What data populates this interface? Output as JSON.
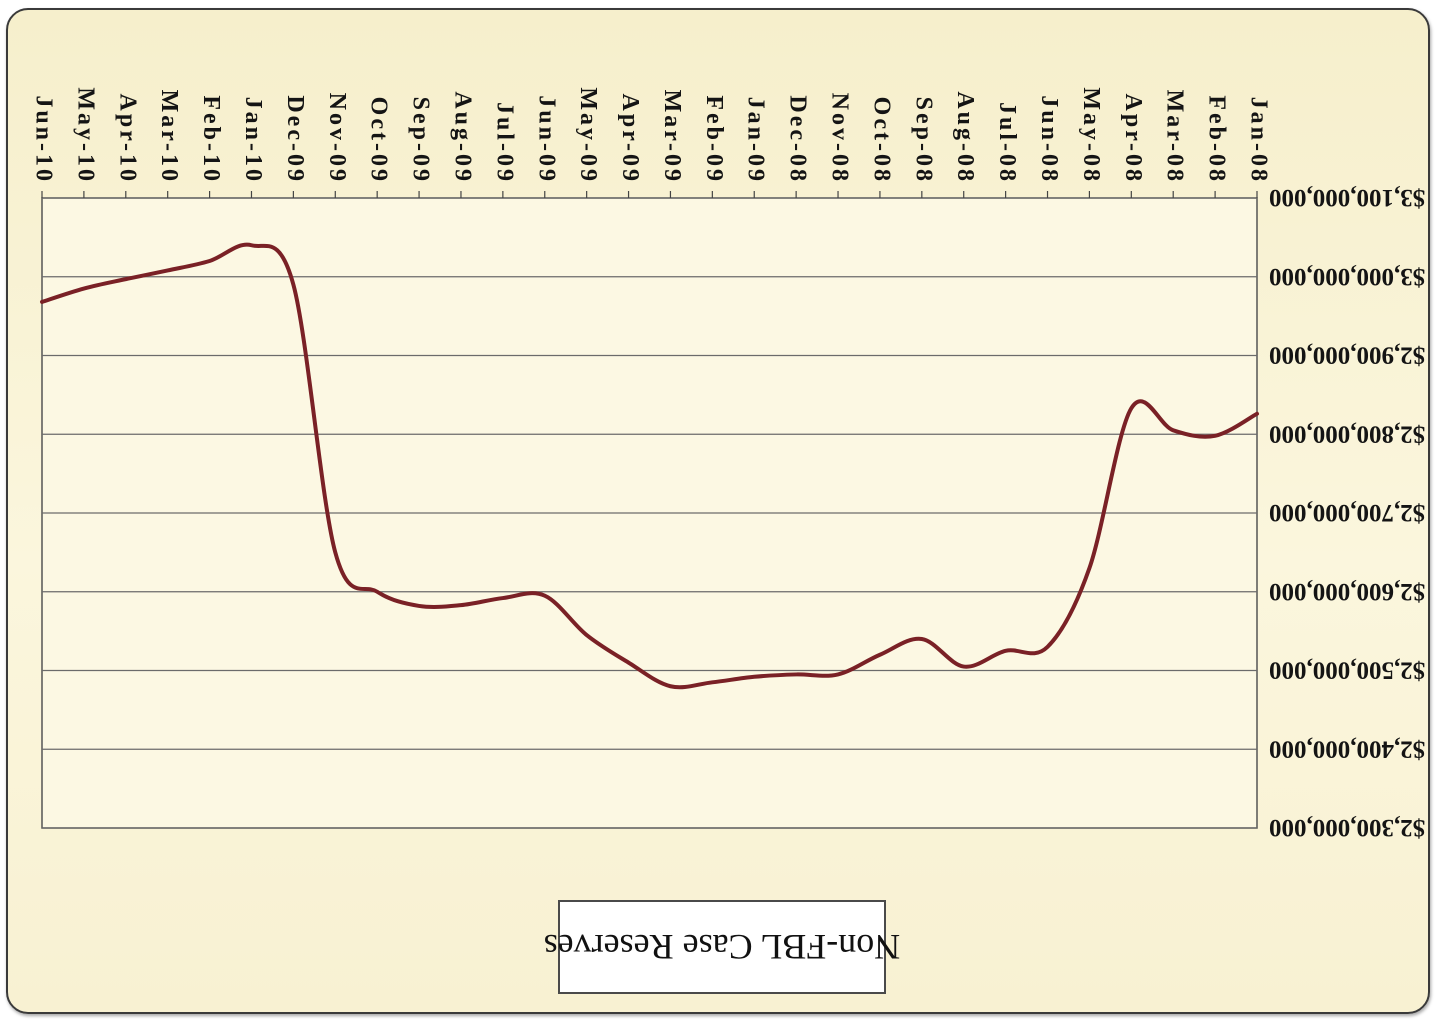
{
  "chart_data": {
    "type": "line",
    "title": "",
    "xlabel": "",
    "ylabel": "",
    "x": [
      "Jan-08",
      "Feb-08",
      "Mar-08",
      "Apr-08",
      "May-08",
      "Jun-08",
      "Jul-08",
      "Aug-08",
      "Sep-08",
      "Oct-08",
      "Nov-08",
      "Dec-08",
      "Jan-09",
      "Feb-09",
      "Mar-09",
      "Apr-09",
      "May-09",
      "Jun-09",
      "Jul-09",
      "Aug-09",
      "Sep-09",
      "Oct-09",
      "Nov-09",
      "Dec-09",
      "Jan-10",
      "Feb-10",
      "Mar-10",
      "Apr-10",
      "May-10",
      "Jun-10"
    ],
    "series": [
      {
        "name": "Non-FBL Case Reserves",
        "color": "#7a2126",
        "values": [
          2826000000,
          2798000000,
          2805000000,
          2833000000,
          2630000000,
          2530000000,
          2525000000,
          2505000000,
          2540000000,
          2520000000,
          2495000000,
          2495000000,
          2492000000,
          2485000000,
          2480000000,
          2510000000,
          2545000000,
          2595000000,
          2592000000,
          2583000000,
          2582000000,
          2600000000,
          2650000000,
          2990000000,
          3040000000,
          3020000000,
          3008000000,
          2997000000,
          2985000000,
          2968000000
        ]
      }
    ],
    "ylim": [
      2300000000,
      3100000000
    ],
    "y_ticks": [
      "$2,300,000,000",
      "$2,400,000,000",
      "$2,500,000,000",
      "$2,600,000,000",
      "$2,700,000,000",
      "$2,800,000,000",
      "$2,900,000,000",
      "$3,000,000,000",
      "$3,100,000,000"
    ],
    "orientation": "rotated 180 degrees (image upside down)",
    "grid": true,
    "legend_position": "bottom",
    "colors": {
      "line": "#7a2126",
      "gridline": "#6b6b6b",
      "background": "#fbf5d8"
    }
  }
}
